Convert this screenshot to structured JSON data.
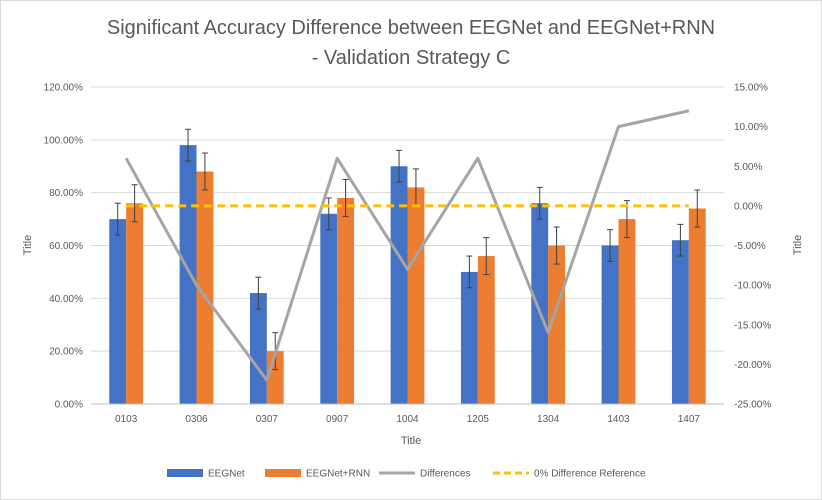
{
  "chart_data": {
    "type": "bar",
    "title_line1": "Significant Accuracy Difference between EEGNet and EEGNet+RNN",
    "title_line2": "- Validation Strategy C",
    "xlabel": "Title",
    "ylabel_left": "Title",
    "ylabel_right": "Title",
    "categories": [
      "0103",
      "0306",
      "0307",
      "0907",
      "1004",
      "1205",
      "1304",
      "1403",
      "1407"
    ],
    "series": [
      {
        "name": "EEGNet",
        "axis": "left",
        "kind": "bar",
        "color": "#4472c4",
        "values": [
          70,
          98,
          42,
          72,
          90,
          50,
          76,
          60,
          62
        ],
        "errors": [
          6,
          6,
          6,
          6,
          6,
          6,
          6,
          6,
          6
        ]
      },
      {
        "name": "EEGNet+RNN",
        "axis": "left",
        "kind": "bar",
        "color": "#ed7d31",
        "values": [
          76,
          88,
          20,
          78,
          82,
          56,
          60,
          70,
          74
        ],
        "errors": [
          7,
          7,
          7,
          7,
          7,
          7,
          7,
          7,
          7
        ]
      },
      {
        "name": "Differences",
        "axis": "right",
        "kind": "line",
        "color": "#a5a5a5",
        "values": [
          6,
          -10,
          -22,
          6,
          -8,
          6,
          -16,
          10,
          12
        ]
      },
      {
        "name": "0% Difference Reference",
        "axis": "right",
        "kind": "dashed-line",
        "color": "#ffc000",
        "values": [
          0,
          0,
          0,
          0,
          0,
          0,
          0,
          0,
          0
        ]
      }
    ],
    "ylim_left": [
      0,
      120
    ],
    "ylim_right": [
      -25,
      15
    ],
    "yticks_left": [
      "0.00%",
      "20.00%",
      "40.00%",
      "60.00%",
      "80.00%",
      "100.00%",
      "120.00%"
    ],
    "yticks_right": [
      "-25.00%",
      "-20.00%",
      "-15.00%",
      "-10.00%",
      "-5.00%",
      "0.00%",
      "5.00%",
      "10.00%",
      "15.00%"
    ],
    "grid": true,
    "legend_position": "bottom"
  }
}
